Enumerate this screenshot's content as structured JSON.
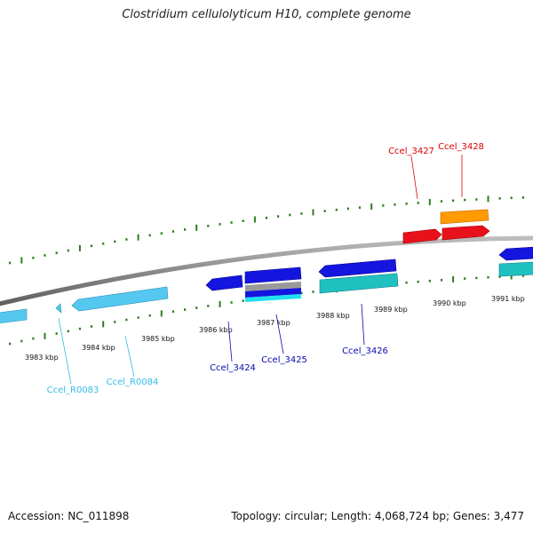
{
  "title": "Clostridium cellulolyticum H10, complete genome",
  "footer": {
    "accession": "Accession: NC_011898",
    "stats": "Topology: circular; Length: 4,068,724 bp; Genes: 3,477"
  },
  "scale": {
    "unit": "kbp",
    "tick_labels": [
      "3983 kbp",
      "3984 kbp",
      "3985 kbp",
      "3986 kbp",
      "3987 kbp",
      "3988 kbp",
      "3989 kbp",
      "3990 kbp",
      "3991 kbp"
    ]
  },
  "genes": [
    {
      "id": "Ccel_R0083",
      "label": "Ccel_R0083",
      "color": "#33bbe6"
    },
    {
      "id": "Ccel_R0084",
      "label": "Ccel_R0084",
      "color": "#33bbe6"
    },
    {
      "id": "Ccel_3424",
      "label": "Ccel_3424",
      "color": "#0a0ab0"
    },
    {
      "id": "Ccel_3425",
      "label": "Ccel_3425",
      "color": "#0a0ab0"
    },
    {
      "id": "Ccel_3426",
      "label": "Ccel_3426",
      "color": "#0a0ab0"
    },
    {
      "id": "Ccel_3427",
      "label": "Ccel_3427",
      "color": "#dd0000"
    },
    {
      "id": "Ccel_3428",
      "label": "Ccel_3428",
      "color": "#dd0000"
    }
  ],
  "colors": {
    "backbone": "#8c8c8c",
    "tick": "#2e7d1e",
    "cds_forward": "#e8101a",
    "cds_reverse": "#1515e0",
    "rrna": "#55c8f0",
    "trna": "#20c0c0",
    "misc": "#ff9a00"
  }
}
